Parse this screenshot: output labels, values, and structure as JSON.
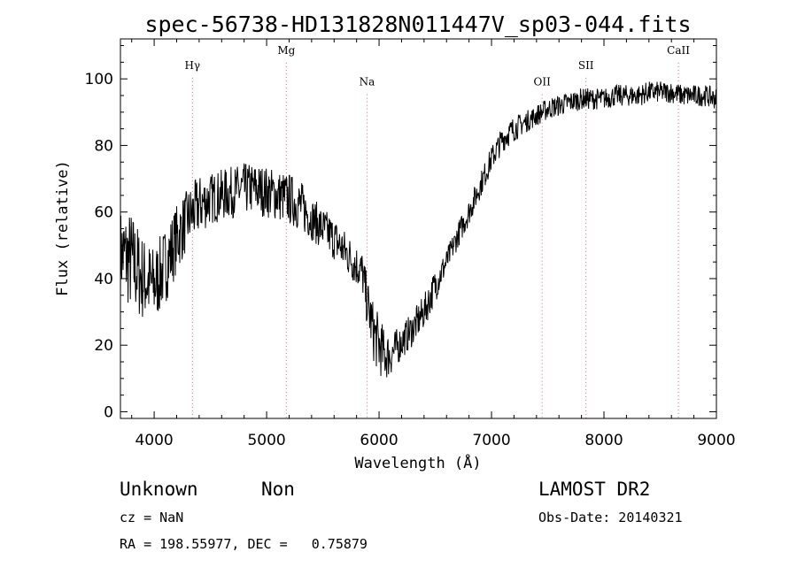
{
  "chart_data": {
    "type": "line",
    "title": "spec-56738-HD131828N011447V_sp03-044.fits",
    "xlabel": "Wavelength (Å)",
    "ylabel": "Flux (relative)",
    "xlim": [
      3700,
      9000
    ],
    "ylim": [
      -2,
      112
    ],
    "xticks": [
      4000,
      5000,
      6000,
      7000,
      8000,
      9000
    ],
    "yticks": [
      0,
      20,
      40,
      60,
      80,
      100
    ],
    "spectral_lines": [
      {
        "label": "Hγ",
        "x": 4340,
        "label_y": 103
      },
      {
        "label": "Mg",
        "x": 5175,
        "label_y": 107.5
      },
      {
        "label": "Na",
        "x": 5893,
        "label_y": 98
      },
      {
        "label": "OII",
        "x": 7450,
        "label_y": 98
      },
      {
        "label": "SII",
        "x": 7840,
        "label_y": 103
      },
      {
        "label": "CaII",
        "x": 8662,
        "label_y": 107.5
      }
    ],
    "series": [
      {
        "x": [
          3700,
          3800,
          3900,
          4000,
          4100,
          4200,
          4300,
          4400,
          4500,
          4600,
          4700,
          4800,
          4900,
          5000,
          5100,
          5200,
          5300,
          5400,
          5500,
          5600,
          5700,
          5800,
          5850,
          5900,
          5950,
          6000,
          6050,
          6100,
          6200,
          6300,
          6400,
          6500,
          6600,
          6700,
          6800,
          6900,
          7000,
          7100,
          7200,
          7300,
          7400,
          7500,
          7600,
          7700,
          7800,
          7900,
          8000,
          8100,
          8200,
          8300,
          8400,
          8500,
          8600,
          8700,
          8800,
          8900,
          9000
        ],
        "y": [
          48,
          45,
          40,
          38,
          44,
          52,
          58,
          62,
          64,
          65,
          66,
          67,
          67,
          66,
          65,
          64,
          62,
          58,
          55,
          52,
          48,
          44,
          42,
          32,
          24,
          20,
          17,
          17,
          21,
          25,
          30,
          38,
          45,
          53,
          60,
          68,
          76,
          82,
          85,
          87,
          89,
          91,
          92,
          93,
          94,
          94,
          94,
          95,
          95,
          95,
          96,
          96,
          96,
          95,
          95,
          95,
          94
        ],
        "noise": [
          10,
          12,
          10,
          9,
          9,
          8,
          7,
          7,
          6,
          6,
          6,
          6,
          6,
          6,
          6,
          6,
          6,
          5,
          5,
          5,
          5,
          5,
          5,
          6,
          7,
          7,
          6,
          5,
          4,
          4,
          4,
          4,
          3,
          3,
          3,
          3,
          3,
          3,
          3,
          2.5,
          2.5,
          2.5,
          2.5,
          2.5,
          2.5,
          2.5,
          2.5,
          2.5,
          2.5,
          2.5,
          2.5,
          2.5,
          2.5,
          2.5,
          2.5,
          2.5,
          2.5
        ]
      }
    ]
  },
  "info": {
    "object": "Unknown",
    "class": "Non",
    "survey": "LAMOST DR2",
    "cz": "cz = NaN",
    "obs_date": "Obs-Date: 20140321",
    "coords": "RA = 198.55977, DEC =   0.75879"
  }
}
